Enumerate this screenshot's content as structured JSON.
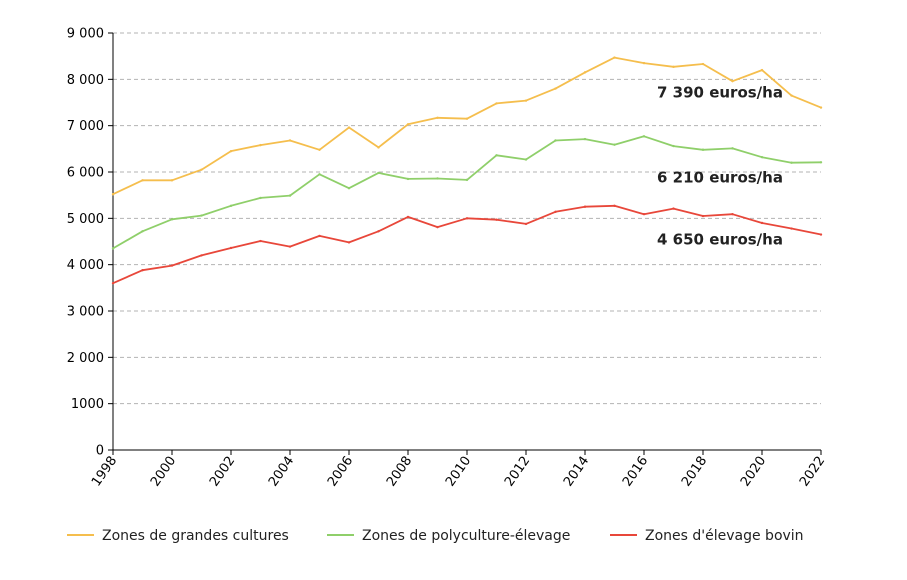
{
  "chart_data": {
    "type": "line",
    "x": [
      1998,
      1999,
      2000,
      2001,
      2002,
      2003,
      2004,
      2005,
      2006,
      2007,
      2008,
      2009,
      2010,
      2011,
      2012,
      2013,
      2014,
      2015,
      2016,
      2017,
      2018,
      2019,
      2020,
      2021,
      2022
    ],
    "xlim": [
      1998,
      2022
    ],
    "ylim": [
      0,
      9000
    ],
    "x_tick_labels": [
      "1998",
      "2000",
      "2002",
      "2004",
      "2006",
      "2008",
      "2010",
      "2012",
      "2014",
      "2016",
      "2018",
      "2020",
      "2022"
    ],
    "y_tick_labels": [
      "0",
      "1000",
      "2 000",
      "3 000",
      "4 000",
      "5 000",
      "6 000",
      "7 000",
      "8 000",
      "9 000"
    ],
    "grid": "horizontal dashed",
    "legend_position": "bottom",
    "series": [
      {
        "name": "Zones de grandes cultures",
        "color": "#F5BE4D",
        "values": [
          5520,
          5820,
          5820,
          6050,
          6450,
          6580,
          6680,
          6480,
          6960,
          6530,
          7030,
          7170,
          7150,
          7480,
          7540,
          7800,
          8150,
          8470,
          8350,
          8270,
          8330,
          7960,
          8200,
          7650,
          7390
        ]
      },
      {
        "name": "Zones de polyculture-élevage",
        "color": "#8FCF6A",
        "values": [
          4350,
          4720,
          4980,
          5060,
          5270,
          5440,
          5490,
          5950,
          5650,
          5980,
          5850,
          5860,
          5830,
          6360,
          6270,
          6680,
          6710,
          6590,
          6770,
          6560,
          6480,
          6510,
          6320,
          6200,
          6210
        ]
      },
      {
        "name": "Zones d'élevage bovin",
        "color": "#E8473A",
        "values": [
          3600,
          3880,
          3980,
          4200,
          4360,
          4510,
          4390,
          4620,
          4480,
          4720,
          5030,
          4810,
          5000,
          4970,
          4880,
          5140,
          5250,
          5270,
          5090,
          5210,
          5050,
          5090,
          4900,
          4780,
          4650
        ]
      }
    ],
    "annotations": [
      {
        "text": "7 390 euros/ha",
        "series": 0
      },
      {
        "text": "6 210 euros/ha",
        "series": 1
      },
      {
        "text": "4 650 euros/ha",
        "series": 2
      }
    ]
  }
}
